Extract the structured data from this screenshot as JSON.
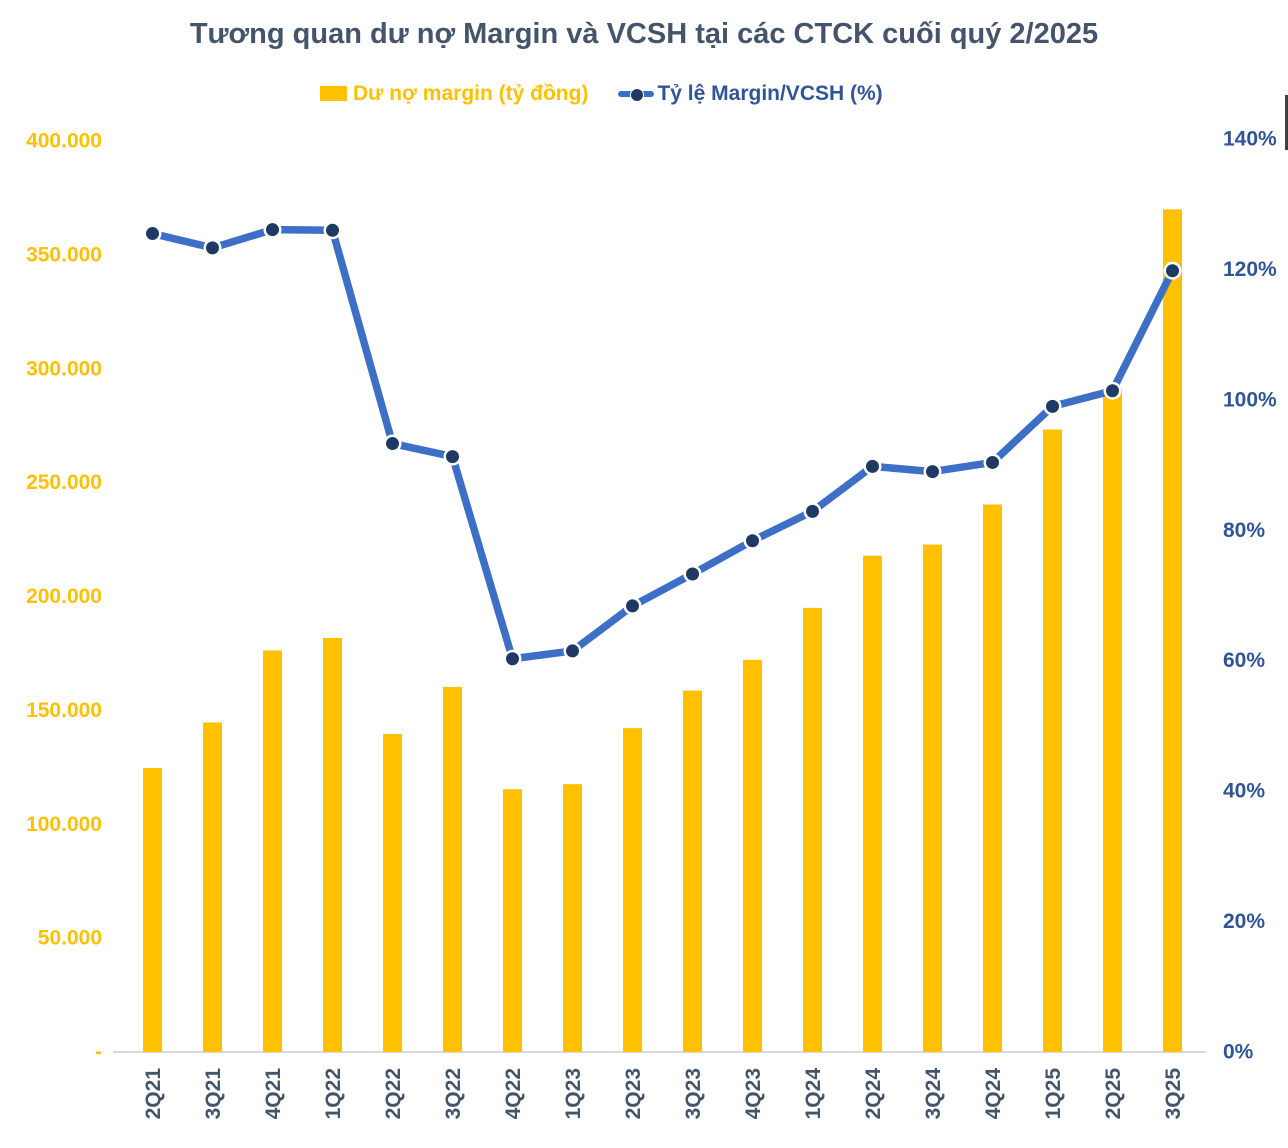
{
  "chart_data": {
    "type": "bar",
    "subtype": "combo-bar-line-dual-axis",
    "title": "Tương quan dư nợ Margin và VCSH tại các CTCK cuối quý 2/2025",
    "categories": [
      "2Q21",
      "3Q21",
      "4Q21",
      "1Q22",
      "2Q22",
      "3Q22",
      "4Q22",
      "1Q23",
      "2Q23",
      "3Q23",
      "4Q23",
      "1Q24",
      "2Q24",
      "3Q24",
      "4Q24",
      "1Q25",
      "2Q25",
      "3Q25"
    ],
    "series": [
      {
        "name": "Dư nợ margin (tỷ đồng)",
        "type": "bar",
        "axis": "left",
        "color": "#FFC000",
        "values": [
          124700,
          144700,
          176300,
          181800,
          139600,
          160300,
          115400,
          117600,
          142200,
          158700,
          172200,
          195000,
          217900,
          222800,
          240400,
          273300,
          291200,
          370000
        ]
      },
      {
        "name": "Tỷ lệ Margin/VCSH (%)",
        "type": "line",
        "axis": "right",
        "color": "#3E6FC6",
        "marker_color": "#1F3864",
        "values": [
          125.5,
          123.3,
          126.1,
          126.0,
          93.3,
          91.3,
          60.3,
          61.5,
          68.4,
          73.3,
          78.4,
          82.9,
          89.8,
          89.0,
          90.4,
          99.0,
          101.4,
          119.8
        ]
      }
    ],
    "left_axis": {
      "min": 0,
      "max": 400000,
      "tick_labels": [
        "400.000",
        "350.000",
        "300.000",
        "250.000",
        "200.000",
        "150.000",
        "100.000",
        "50.000",
        "-"
      ],
      "color": "#FFC000"
    },
    "right_axis": {
      "min": 0,
      "max": 140,
      "tick_labels": [
        "140%",
        "120%",
        "100%",
        "80%",
        "60%",
        "40%",
        "20%",
        "0%"
      ],
      "color": "#2F5597"
    },
    "x_axis": {
      "label_color": "#44546A",
      "label_rotation_deg": -90,
      "axis_line_color": "#D9D9D9"
    },
    "legend_position": "top",
    "grid": false
  }
}
